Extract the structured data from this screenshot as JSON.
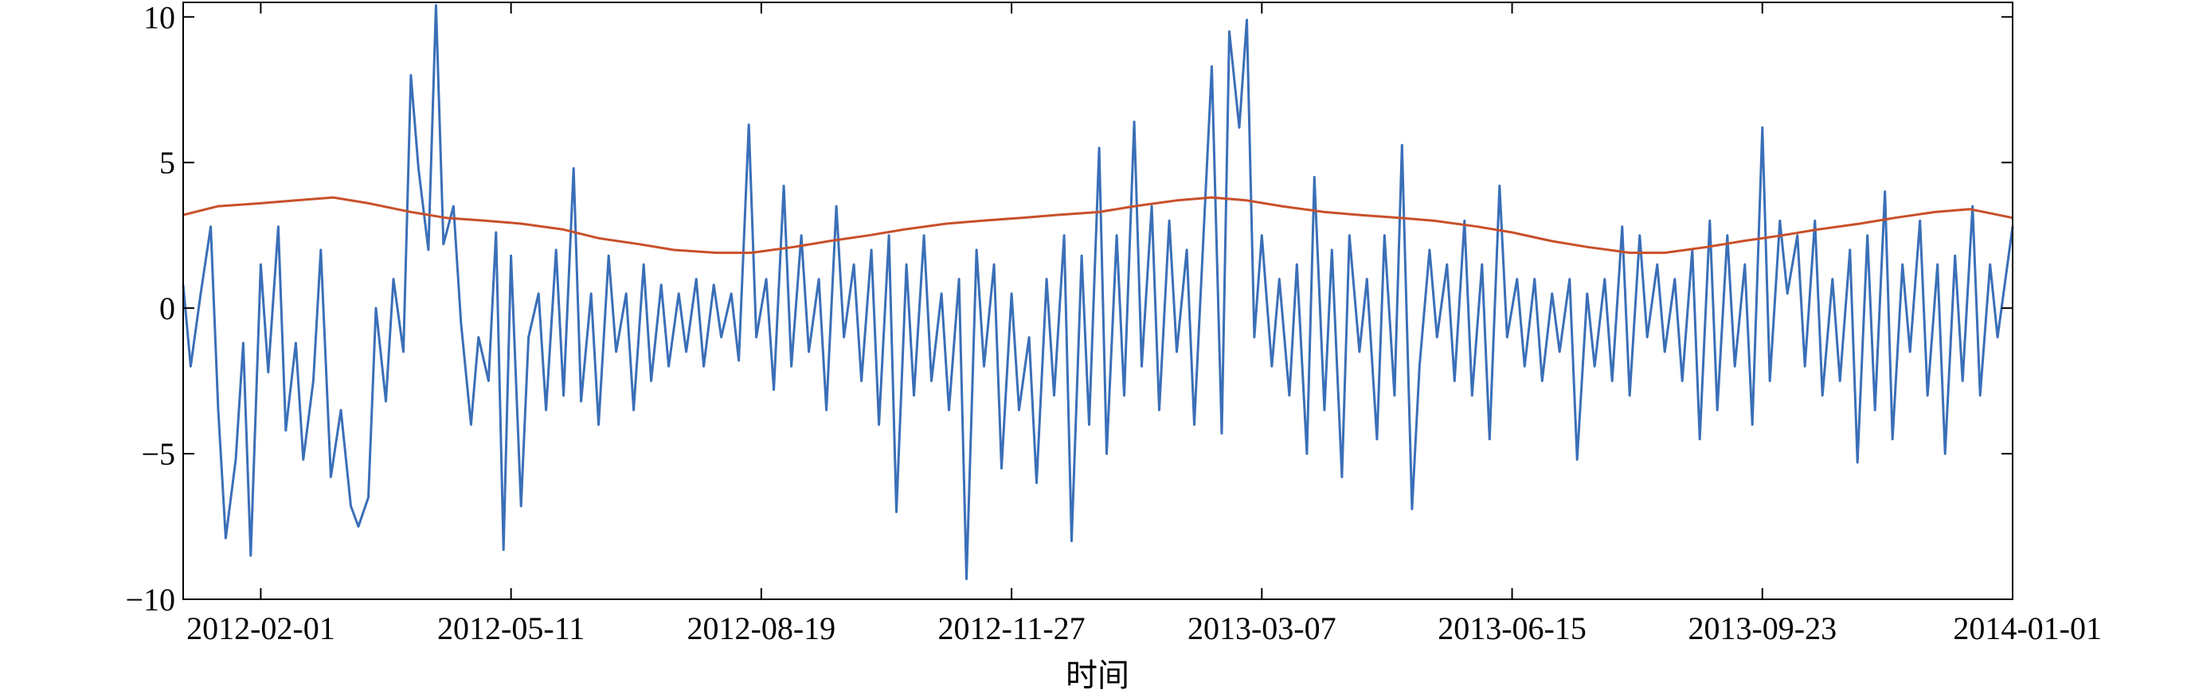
{
  "chart_data": {
    "type": "line",
    "title": "",
    "xlabel": "时间",
    "ylabel": "",
    "x_range": [
      "2012-01-01",
      "2014-01-01"
    ],
    "ylim": [
      -10,
      10.5
    ],
    "yticks": [
      -10,
      -5,
      0,
      5,
      10
    ],
    "ytick_labels": [
      "−10",
      "−5",
      "0",
      "5",
      "10"
    ],
    "xticks": [
      "2012-02-01",
      "2012-05-11",
      "2012-08-19",
      "2012-11-27",
      "2013-03-07",
      "2013-06-15",
      "2013-09-23",
      "2014-01-01"
    ],
    "grid": false,
    "legend": "none",
    "series": [
      {
        "color": "#3a6fb8",
        "points": [
          [
            "2012-01-01",
            0.8
          ],
          [
            "2012-01-04",
            -2.0
          ],
          [
            "2012-01-08",
            0.5
          ],
          [
            "2012-01-12",
            2.8
          ],
          [
            "2012-01-15",
            -3.5
          ],
          [
            "2012-01-18",
            -7.9
          ],
          [
            "2012-01-22",
            -5.2
          ],
          [
            "2012-01-25",
            -1.2
          ],
          [
            "2012-01-28",
            -8.5
          ],
          [
            "2012-02-01",
            1.5
          ],
          [
            "2012-02-04",
            -2.2
          ],
          [
            "2012-02-08",
            2.8
          ],
          [
            "2012-02-11",
            -4.2
          ],
          [
            "2012-02-15",
            -1.2
          ],
          [
            "2012-02-18",
            -5.2
          ],
          [
            "2012-02-22",
            -2.5
          ],
          [
            "2012-02-25",
            2.0
          ],
          [
            "2012-02-29",
            -5.8
          ],
          [
            "2012-03-04",
            -3.5
          ],
          [
            "2012-03-08",
            -6.8
          ],
          [
            "2012-03-11",
            -7.5
          ],
          [
            "2012-03-15",
            -6.5
          ],
          [
            "2012-03-18",
            0.0
          ],
          [
            "2012-03-22",
            -3.2
          ],
          [
            "2012-03-25",
            1.0
          ],
          [
            "2012-03-29",
            -1.5
          ],
          [
            "2012-04-01",
            8.0
          ],
          [
            "2012-04-04",
            4.8
          ],
          [
            "2012-04-08",
            2.0
          ],
          [
            "2012-04-11",
            10.4
          ],
          [
            "2012-04-14",
            2.2
          ],
          [
            "2012-04-18",
            3.5
          ],
          [
            "2012-04-21",
            -0.5
          ],
          [
            "2012-04-25",
            -4.0
          ],
          [
            "2012-04-28",
            -1.0
          ],
          [
            "2012-05-02",
            -2.5
          ],
          [
            "2012-05-05",
            2.6
          ],
          [
            "2012-05-08",
            -8.3
          ],
          [
            "2012-05-11",
            1.8
          ],
          [
            "2012-05-15",
            -6.8
          ],
          [
            "2012-05-18",
            -1.0
          ],
          [
            "2012-05-22",
            0.5
          ],
          [
            "2012-05-25",
            -3.5
          ],
          [
            "2012-05-29",
            2.0
          ],
          [
            "2012-06-01",
            -3.0
          ],
          [
            "2012-06-05",
            4.8
          ],
          [
            "2012-06-08",
            -3.2
          ],
          [
            "2012-06-12",
            0.5
          ],
          [
            "2012-06-15",
            -4.0
          ],
          [
            "2012-06-19",
            1.8
          ],
          [
            "2012-06-22",
            -1.5
          ],
          [
            "2012-06-26",
            0.5
          ],
          [
            "2012-06-29",
            -3.5
          ],
          [
            "2012-07-03",
            1.5
          ],
          [
            "2012-07-06",
            -2.5
          ],
          [
            "2012-07-10",
            0.8
          ],
          [
            "2012-07-13",
            -2.0
          ],
          [
            "2012-07-17",
            0.5
          ],
          [
            "2012-07-20",
            -1.5
          ],
          [
            "2012-07-24",
            1.0
          ],
          [
            "2012-07-27",
            -2.0
          ],
          [
            "2012-07-31",
            0.8
          ],
          [
            "2012-08-03",
            -1.0
          ],
          [
            "2012-08-07",
            0.5
          ],
          [
            "2012-08-10",
            -1.8
          ],
          [
            "2012-08-14",
            6.3
          ],
          [
            "2012-08-17",
            -1.0
          ],
          [
            "2012-08-21",
            1.0
          ],
          [
            "2012-08-24",
            -2.8
          ],
          [
            "2012-08-28",
            4.2
          ],
          [
            "2012-08-31",
            -2.0
          ],
          [
            "2012-09-04",
            2.5
          ],
          [
            "2012-09-07",
            -1.5
          ],
          [
            "2012-09-11",
            1.0
          ],
          [
            "2012-09-14",
            -3.5
          ],
          [
            "2012-09-18",
            3.5
          ],
          [
            "2012-09-21",
            -1.0
          ],
          [
            "2012-09-25",
            1.5
          ],
          [
            "2012-09-28",
            -2.5
          ],
          [
            "2012-10-02",
            2.0
          ],
          [
            "2012-10-05",
            -4.0
          ],
          [
            "2012-10-09",
            2.5
          ],
          [
            "2012-10-12",
            -7.0
          ],
          [
            "2012-10-16",
            1.5
          ],
          [
            "2012-10-19",
            -3.0
          ],
          [
            "2012-10-23",
            2.5
          ],
          [
            "2012-10-26",
            -2.5
          ],
          [
            "2012-10-30",
            0.5
          ],
          [
            "2012-11-02",
            -3.5
          ],
          [
            "2012-11-06",
            1.0
          ],
          [
            "2012-11-09",
            -9.3
          ],
          [
            "2012-11-13",
            2.0
          ],
          [
            "2012-11-16",
            -2.0
          ],
          [
            "2012-11-20",
            1.5
          ],
          [
            "2012-11-23",
            -5.5
          ],
          [
            "2012-11-27",
            0.5
          ],
          [
            "2012-11-30",
            -3.5
          ],
          [
            "2012-12-04",
            -1.0
          ],
          [
            "2012-12-07",
            -6.0
          ],
          [
            "2012-12-11",
            1.0
          ],
          [
            "2012-12-14",
            -3.0
          ],
          [
            "2012-12-18",
            2.5
          ],
          [
            "2012-12-21",
            -8.0
          ],
          [
            "2012-12-25",
            1.8
          ],
          [
            "2012-12-28",
            -4.0
          ],
          [
            "2013-01-01",
            5.5
          ],
          [
            "2013-01-04",
            -5.0
          ],
          [
            "2013-01-08",
            2.5
          ],
          [
            "2013-01-11",
            -3.0
          ],
          [
            "2013-01-15",
            6.4
          ],
          [
            "2013-01-18",
            -2.0
          ],
          [
            "2013-01-22",
            3.5
          ],
          [
            "2013-01-25",
            -3.5
          ],
          [
            "2013-01-29",
            3.0
          ],
          [
            "2013-02-01",
            -1.5
          ],
          [
            "2013-02-05",
            2.0
          ],
          [
            "2013-02-08",
            -4.0
          ],
          [
            "2013-02-12",
            3.0
          ],
          [
            "2013-02-15",
            8.3
          ],
          [
            "2013-02-19",
            -4.3
          ],
          [
            "2013-02-22",
            9.5
          ],
          [
            "2013-02-26",
            6.2
          ],
          [
            "2013-03-01",
            9.9
          ],
          [
            "2013-03-04",
            -1.0
          ],
          [
            "2013-03-07",
            2.5
          ],
          [
            "2013-03-11",
            -2.0
          ],
          [
            "2013-03-14",
            1.0
          ],
          [
            "2013-03-18",
            -3.0
          ],
          [
            "2013-03-21",
            1.5
          ],
          [
            "2013-03-25",
            -5.0
          ],
          [
            "2013-03-28",
            4.5
          ],
          [
            "2013-04-01",
            -3.5
          ],
          [
            "2013-04-04",
            2.0
          ],
          [
            "2013-04-08",
            -5.8
          ],
          [
            "2013-04-11",
            2.5
          ],
          [
            "2013-04-15",
            -1.5
          ],
          [
            "2013-04-18",
            1.0
          ],
          [
            "2013-04-22",
            -4.5
          ],
          [
            "2013-04-25",
            2.5
          ],
          [
            "2013-04-29",
            -3.0
          ],
          [
            "2013-05-02",
            5.6
          ],
          [
            "2013-05-06",
            -6.9
          ],
          [
            "2013-05-09",
            -2.0
          ],
          [
            "2013-05-13",
            2.0
          ],
          [
            "2013-05-16",
            -1.0
          ],
          [
            "2013-05-20",
            1.5
          ],
          [
            "2013-05-23",
            -2.5
          ],
          [
            "2013-05-27",
            3.0
          ],
          [
            "2013-05-30",
            -3.0
          ],
          [
            "2013-06-03",
            1.5
          ],
          [
            "2013-06-06",
            -4.5
          ],
          [
            "2013-06-10",
            4.2
          ],
          [
            "2013-06-13",
            -1.0
          ],
          [
            "2013-06-17",
            1.0
          ],
          [
            "2013-06-20",
            -2.0
          ],
          [
            "2013-06-24",
            1.0
          ],
          [
            "2013-06-27",
            -2.5
          ],
          [
            "2013-07-01",
            0.5
          ],
          [
            "2013-07-04",
            -1.5
          ],
          [
            "2013-07-08",
            1.0
          ],
          [
            "2013-07-11",
            -5.2
          ],
          [
            "2013-07-15",
            0.5
          ],
          [
            "2013-07-18",
            -2.0
          ],
          [
            "2013-07-22",
            1.0
          ],
          [
            "2013-07-25",
            -2.5
          ],
          [
            "2013-07-29",
            2.8
          ],
          [
            "2013-08-01",
            -3.0
          ],
          [
            "2013-08-05",
            2.5
          ],
          [
            "2013-08-08",
            -1.0
          ],
          [
            "2013-08-12",
            1.5
          ],
          [
            "2013-08-15",
            -1.5
          ],
          [
            "2013-08-19",
            1.0
          ],
          [
            "2013-08-22",
            -2.5
          ],
          [
            "2013-08-26",
            2.0
          ],
          [
            "2013-08-29",
            -4.5
          ],
          [
            "2013-09-02",
            3.0
          ],
          [
            "2013-09-05",
            -3.5
          ],
          [
            "2013-09-09",
            2.5
          ],
          [
            "2013-09-12",
            -2.0
          ],
          [
            "2013-09-16",
            1.5
          ],
          [
            "2013-09-19",
            -4.0
          ],
          [
            "2013-09-23",
            6.2
          ],
          [
            "2013-09-26",
            -2.5
          ],
          [
            "2013-09-30",
            3.0
          ],
          [
            "2013-10-03",
            0.5
          ],
          [
            "2013-10-07",
            2.5
          ],
          [
            "2013-10-10",
            -2.0
          ],
          [
            "2013-10-14",
            3.0
          ],
          [
            "2013-10-17",
            -3.0
          ],
          [
            "2013-10-21",
            1.0
          ],
          [
            "2013-10-24",
            -2.5
          ],
          [
            "2013-10-28",
            2.0
          ],
          [
            "2013-10-31",
            -5.3
          ],
          [
            "2013-11-04",
            2.5
          ],
          [
            "2013-11-07",
            -3.5
          ],
          [
            "2013-11-11",
            4.0
          ],
          [
            "2013-11-14",
            -4.5
          ],
          [
            "2013-11-18",
            1.5
          ],
          [
            "2013-11-21",
            -1.5
          ],
          [
            "2013-11-25",
            3.0
          ],
          [
            "2013-11-28",
            -3.0
          ],
          [
            "2013-12-02",
            1.5
          ],
          [
            "2013-12-05",
            -5.0
          ],
          [
            "2013-12-09",
            1.8
          ],
          [
            "2013-12-12",
            -2.5
          ],
          [
            "2013-12-16",
            3.5
          ],
          [
            "2013-12-19",
            -3.0
          ],
          [
            "2013-12-23",
            1.5
          ],
          [
            "2013-12-26",
            -1.0
          ],
          [
            "2014-01-01",
            2.8
          ]
        ]
      },
      {
        "color": "#c8502a",
        "points": [
          [
            "2012-01-01",
            3.2
          ],
          [
            "2012-01-15",
            3.5
          ],
          [
            "2012-02-01",
            3.6
          ],
          [
            "2012-02-15",
            3.7
          ],
          [
            "2012-03-01",
            3.8
          ],
          [
            "2012-03-15",
            3.6
          ],
          [
            "2012-04-01",
            3.3
          ],
          [
            "2012-04-15",
            3.1
          ],
          [
            "2012-05-01",
            3.0
          ],
          [
            "2012-05-15",
            2.9
          ],
          [
            "2012-06-01",
            2.7
          ],
          [
            "2012-06-15",
            2.4
          ],
          [
            "2012-07-01",
            2.2
          ],
          [
            "2012-07-15",
            2.0
          ],
          [
            "2012-08-01",
            1.9
          ],
          [
            "2012-08-15",
            1.9
          ],
          [
            "2012-09-01",
            2.1
          ],
          [
            "2012-09-15",
            2.3
          ],
          [
            "2012-10-01",
            2.5
          ],
          [
            "2012-10-15",
            2.7
          ],
          [
            "2012-11-01",
            2.9
          ],
          [
            "2012-11-15",
            3.0
          ],
          [
            "2012-12-01",
            3.1
          ],
          [
            "2012-12-15",
            3.2
          ],
          [
            "2013-01-01",
            3.3
          ],
          [
            "2013-01-15",
            3.5
          ],
          [
            "2013-02-01",
            3.7
          ],
          [
            "2013-02-15",
            3.8
          ],
          [
            "2013-03-01",
            3.7
          ],
          [
            "2013-03-15",
            3.5
          ],
          [
            "2013-04-01",
            3.3
          ],
          [
            "2013-04-15",
            3.2
          ],
          [
            "2013-05-01",
            3.1
          ],
          [
            "2013-05-15",
            3.0
          ],
          [
            "2013-06-01",
            2.8
          ],
          [
            "2013-06-15",
            2.6
          ],
          [
            "2013-07-01",
            2.3
          ],
          [
            "2013-07-15",
            2.1
          ],
          [
            "2013-08-01",
            1.9
          ],
          [
            "2013-08-15",
            1.9
          ],
          [
            "2013-09-01",
            2.1
          ],
          [
            "2013-09-15",
            2.3
          ],
          [
            "2013-10-01",
            2.5
          ],
          [
            "2013-10-15",
            2.7
          ],
          [
            "2013-11-01",
            2.9
          ],
          [
            "2013-11-15",
            3.1
          ],
          [
            "2013-12-01",
            3.3
          ],
          [
            "2013-12-15",
            3.4
          ],
          [
            "2014-01-01",
            3.1
          ]
        ]
      }
    ]
  }
}
